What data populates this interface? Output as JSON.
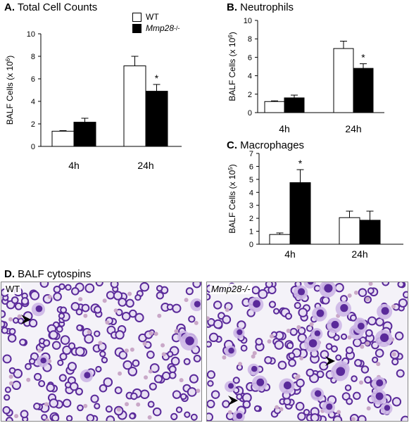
{
  "panels": {
    "a": {
      "letter": "A.",
      "title": "Total Cell Counts"
    },
    "b": {
      "letter": "B.",
      "title": "Neutrophils"
    },
    "c": {
      "letter": "C.",
      "title": "Macrophages"
    },
    "d": {
      "letter": "D.",
      "title": "BALF cytospins"
    }
  },
  "legend": {
    "wt": "WT",
    "ko_base": "Mmp28",
    "ko_sup": "-/-"
  },
  "cytospins": {
    "left_label": "WT",
    "right_label": "Mmp28-/-"
  },
  "colors": {
    "wt_fill": "#ffffff",
    "ko_fill": "#000000",
    "cytoplasm": "#cdb7e6",
    "nucleus": "#5a2a9a"
  },
  "chart_data": [
    {
      "panel": "A",
      "type": "bar",
      "title": "Total Cell Counts",
      "categories": [
        "4h",
        "24h"
      ],
      "series": [
        {
          "name": "WT",
          "values": [
            1.35,
            7.15
          ],
          "errors": [
            0.05,
            0.85
          ]
        },
        {
          "name": "Mmp28-/-",
          "values": [
            2.15,
            4.9
          ],
          "errors": [
            0.35,
            0.6
          ]
        }
      ],
      "significance": [
        {
          "category": "24h",
          "series": "Mmp28-/-",
          "mark": "*"
        }
      ],
      "ylabel_base": "BALF Cells (x 10",
      "ylabel_exp": "6",
      "ylabel_end": ")",
      "ylim": [
        0,
        10
      ],
      "yticks": [
        0,
        2,
        4,
        6,
        8,
        10
      ]
    },
    {
      "panel": "B",
      "type": "bar",
      "title": "Neutrophils",
      "categories": [
        "4h",
        "24h"
      ],
      "series": [
        {
          "name": "WT",
          "values": [
            1.2,
            6.95
          ],
          "errors": [
            0.08,
            0.8
          ]
        },
        {
          "name": "Mmp28-/-",
          "values": [
            1.6,
            4.8
          ],
          "errors": [
            0.3,
            0.5
          ]
        }
      ],
      "significance": [
        {
          "category": "24h",
          "series": "Mmp28-/-",
          "mark": "*"
        }
      ],
      "ylabel_base": "BALF Cells (x 10",
      "ylabel_exp": "6",
      "ylabel_end": ")",
      "ylim": [
        0,
        10
      ],
      "yticks": [
        0,
        2,
        4,
        6,
        8,
        10
      ]
    },
    {
      "panel": "C",
      "type": "bar",
      "title": "Macrophages",
      "categories": [
        "4h",
        "24h"
      ],
      "series": [
        {
          "name": "WT",
          "values": [
            0.75,
            2.05
          ],
          "errors": [
            0.12,
            0.5
          ]
        },
        {
          "name": "Mmp28-/-",
          "values": [
            4.75,
            1.85
          ],
          "errors": [
            1.0,
            0.7
          ]
        }
      ],
      "significance": [
        {
          "category": "4h",
          "series": "Mmp28-/-",
          "mark": "*"
        }
      ],
      "ylabel_base": "BALF Cells (x 10",
      "ylabel_exp": "5",
      "ylabel_end": ")",
      "ylim": [
        0,
        7
      ],
      "yticks": [
        0,
        1,
        2,
        3,
        4,
        5,
        6,
        7
      ]
    }
  ]
}
